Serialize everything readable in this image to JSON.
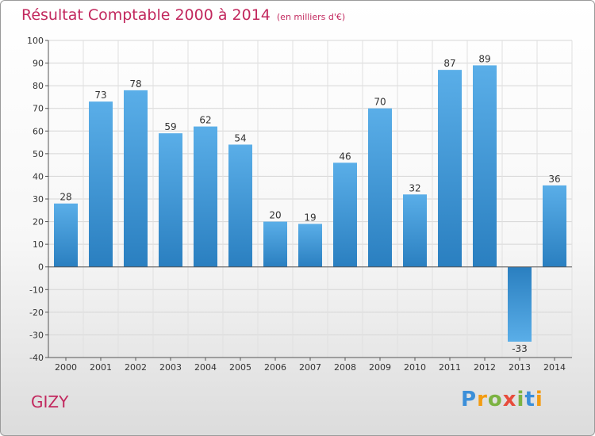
{
  "chart_data": {
    "type": "bar",
    "title": "Résultat Comptable 2000 à 2014",
    "subtitle": "(en milliers d'€)",
    "categories": [
      "2000",
      "2001",
      "2002",
      "2003",
      "2004",
      "2005",
      "2006",
      "2007",
      "2008",
      "2009",
      "2010",
      "2011",
      "2012",
      "2013",
      "2014"
    ],
    "values": [
      28,
      73,
      78,
      59,
      62,
      54,
      20,
      19,
      46,
      70,
      32,
      87,
      89,
      -33,
      36
    ],
    "ylim": [
      -40,
      100
    ],
    "yticks": [
      -40,
      -30,
      -20,
      -10,
      0,
      10,
      20,
      30,
      40,
      50,
      60,
      70,
      80,
      90,
      100
    ],
    "xlabel": "",
    "ylabel": "",
    "grid": true
  },
  "location": "GIZY",
  "logo": {
    "text": "Proxiti",
    "letters": [
      "P",
      "r",
      "o",
      "x",
      "i",
      "t",
      "i"
    ]
  },
  "colors": {
    "bar_light": "#5aaee8",
    "bar_dark": "#2a7fc0",
    "accent": "#c2285e"
  }
}
